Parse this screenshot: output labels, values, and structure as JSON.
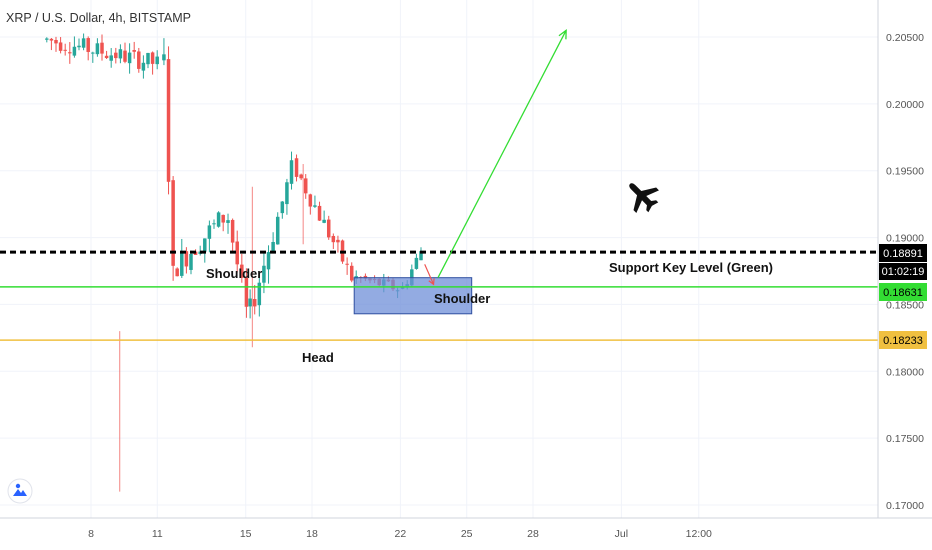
{
  "header": {
    "title": "XRP / U.S. Dollar, 4h, BITSTAMP"
  },
  "price_axis": {
    "ticks": [
      "0.20500",
      "0.20000",
      "0.19500",
      "0.19000",
      "0.18500",
      "0.18000",
      "0.17500",
      "0.17000"
    ],
    "badges": {
      "black_line": "0.18891",
      "countdown": "01:02:19",
      "green_line": "0.18631",
      "orange_line": "0.18233"
    }
  },
  "time_axis": {
    "ticks": [
      "8",
      "11",
      "15",
      "18",
      "22",
      "25",
      "28",
      "Jul",
      "12:00"
    ]
  },
  "annotations": {
    "left_shoulder": "Shoulder",
    "head": "Head",
    "right_shoulder": "Shoulder",
    "support_label": "Support Key Level (Green)"
  },
  "colors": {
    "up": "#26a69a",
    "down": "#ef5350",
    "green_line": "#33dd33",
    "orange_line": "#f0c040",
    "black_line": "#000000",
    "box_fill": "#6f8fd8",
    "box_border": "#3050a0",
    "grid": "#f0f3fa",
    "axis_text": "#555555"
  },
  "icons": {
    "airplane": "airplane-icon",
    "logo": "tradingview-logo-icon"
  },
  "chart_data": {
    "type": "candlestick",
    "title": "XRP / U.S. Dollar, 4h, BITSTAMP",
    "ylim": [
      0.1693,
      0.2075
    ],
    "x_ticks": [
      "8",
      "11",
      "15",
      "18",
      "22",
      "25",
      "28",
      "Jul",
      "12:00"
    ],
    "y_ticks": [
      0.205,
      0.2,
      0.195,
      0.19,
      0.185,
      0.18,
      0.175,
      0.17
    ],
    "series": [
      {
        "segment": "left_plateau",
        "day_start": 6.0,
        "day_end": 11.3,
        "open": 0.2048,
        "close": 0.203,
        "level": 0.2035,
        "noise": 0.0009
      },
      {
        "segment": "crash",
        "day_start": 11.3,
        "day_end": 11.9,
        "open": 0.203,
        "close": 0.187,
        "level": 0.19,
        "noise": 0.0015
      },
      {
        "segment": "left_shoulder_range",
        "day_start": 11.9,
        "day_end": 14.2,
        "open": 0.188,
        "close": 0.1915,
        "level": 0.192,
        "noise": 0.0012
      },
      {
        "segment": "drop_to_head",
        "day_start": 14.2,
        "day_end": 15.2,
        "open": 0.1915,
        "close": 0.1845,
        "level": 0.188,
        "noise": 0.001
      },
      {
        "segment": "recovery",
        "day_start": 15.2,
        "day_end": 17.3,
        "open": 0.1845,
        "close": 0.195,
        "level": 0.192,
        "noise": 0.0012
      },
      {
        "segment": "fade",
        "day_start": 17.3,
        "day_end": 20.0,
        "open": 0.195,
        "close": 0.187,
        "level": 0.19,
        "noise": 0.0009
      },
      {
        "segment": "right_shoulder",
        "day_start": 20.0,
        "day_end": 22.1,
        "open": 0.187,
        "close": 0.1862,
        "level": 0.1866,
        "noise": 0.0006
      },
      {
        "segment": "latest",
        "day_start": 22.1,
        "day_end": 23.2,
        "open": 0.1862,
        "close": 0.189,
        "level": 0.1885,
        "noise": 0.0007
      }
    ],
    "spikes": [
      {
        "day": 9.3,
        "low": 0.171
      },
      {
        "day": 15.3,
        "low": 0.1818
      },
      {
        "day": 17.6,
        "high": 0.1955
      }
    ],
    "horizontal_lines": [
      {
        "name": "resistance_dashed",
        "value": 0.18891
      },
      {
        "name": "support_green",
        "value": 0.18631
      },
      {
        "name": "support_orange",
        "value": 0.18233
      }
    ],
    "box": {
      "x0_day": 20.0,
      "x1_day": 25.0,
      "y_top": 0.187,
      "y_bottom": 0.1843
    },
    "projection_arrow": {
      "from_day": 23.7,
      "from_value": 0.187,
      "to_day": 29.5,
      "to_value": 0.2055
    },
    "small_red_arrow": {
      "from_day": 23.1,
      "from_value": 0.188,
      "to_day": 23.5,
      "to_value": 0.1865
    }
  }
}
